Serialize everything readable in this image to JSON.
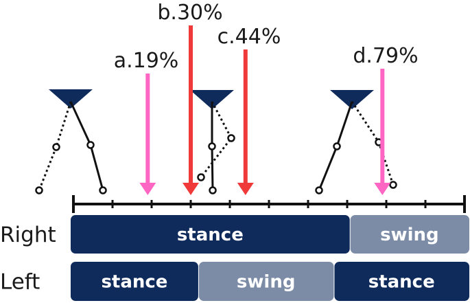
{
  "markers": [
    {
      "label": "a.19%",
      "percent": 19,
      "color": "#ff66c4"
    },
    {
      "label": "b.30%",
      "percent": 30,
      "color": "#f03a3a"
    },
    {
      "label": "c.44%",
      "percent": 44,
      "color": "#f03a3a"
    },
    {
      "label": "d.79%",
      "percent": 79,
      "color": "#ff66c4"
    }
  ],
  "rows": [
    {
      "label": "Right",
      "phases": [
        {
          "label": "stance",
          "start": 0,
          "end": 70,
          "color": "#0f2b5c"
        },
        {
          "label": "swing",
          "start": 70,
          "end": 100,
          "color": "#7c8ca6"
        }
      ]
    },
    {
      "label": "Left",
      "phases": [
        {
          "label": "stance",
          "start": 0,
          "end": 32,
          "color": "#0f2b5c"
        },
        {
          "label": "swing",
          "start": 32,
          "end": 66,
          "color": "#7c8ca6"
        },
        {
          "label": "stance",
          "start": 66,
          "end": 100,
          "color": "#0f2b5c"
        }
      ]
    }
  ],
  "timeline": {
    "ticks": 11,
    "color": "#111111"
  },
  "figures": [
    {
      "name": "stick-figure-initial-contact"
    },
    {
      "name": "stick-figure-midstance"
    },
    {
      "name": "stick-figure-preswing"
    }
  ]
}
